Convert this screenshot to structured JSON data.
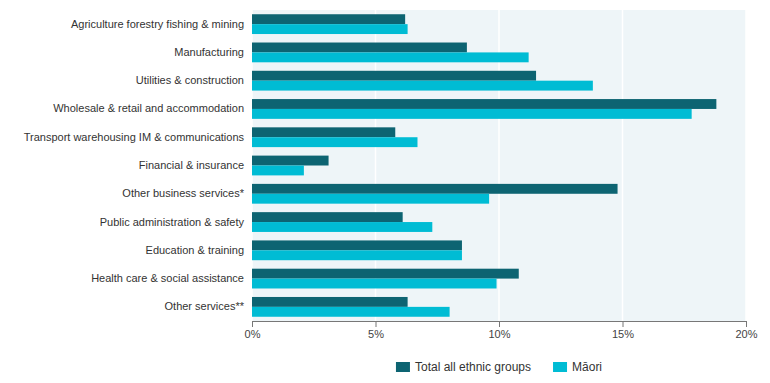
{
  "chart_data": {
    "type": "bar",
    "orientation": "horizontal",
    "categories": [
      "Agriculture forestry fishing & mining",
      "Manufacturing",
      "Utilities & construction",
      "Wholesale & retail and accommodation",
      "Transport warehousing IM & communications",
      "Financial & insurance",
      "Other business services*",
      "Public administration & safety",
      "Education & training",
      "Health care & social assistance",
      "Other services**"
    ],
    "series": [
      {
        "name": "Total all ethnic groups",
        "color": "#0d6472",
        "values": [
          6.2,
          8.7,
          11.5,
          18.8,
          5.8,
          3.1,
          14.8,
          6.1,
          8.5,
          10.8,
          6.3
        ]
      },
      {
        "name": "Māori",
        "color": "#00bcd4",
        "values": [
          6.3,
          11.2,
          13.8,
          17.8,
          6.7,
          2.1,
          9.6,
          7.3,
          8.5,
          9.9,
          8.0
        ]
      }
    ],
    "xlim": [
      0,
      20
    ],
    "xticks": [
      {
        "value": 0,
        "label": "0%"
      },
      {
        "value": 5,
        "label": "5%"
      },
      {
        "value": 10,
        "label": "10%"
      },
      {
        "value": 15,
        "label": "15%"
      },
      {
        "value": 20,
        "label": "20%"
      }
    ],
    "grid": true,
    "legend": "bottom"
  }
}
